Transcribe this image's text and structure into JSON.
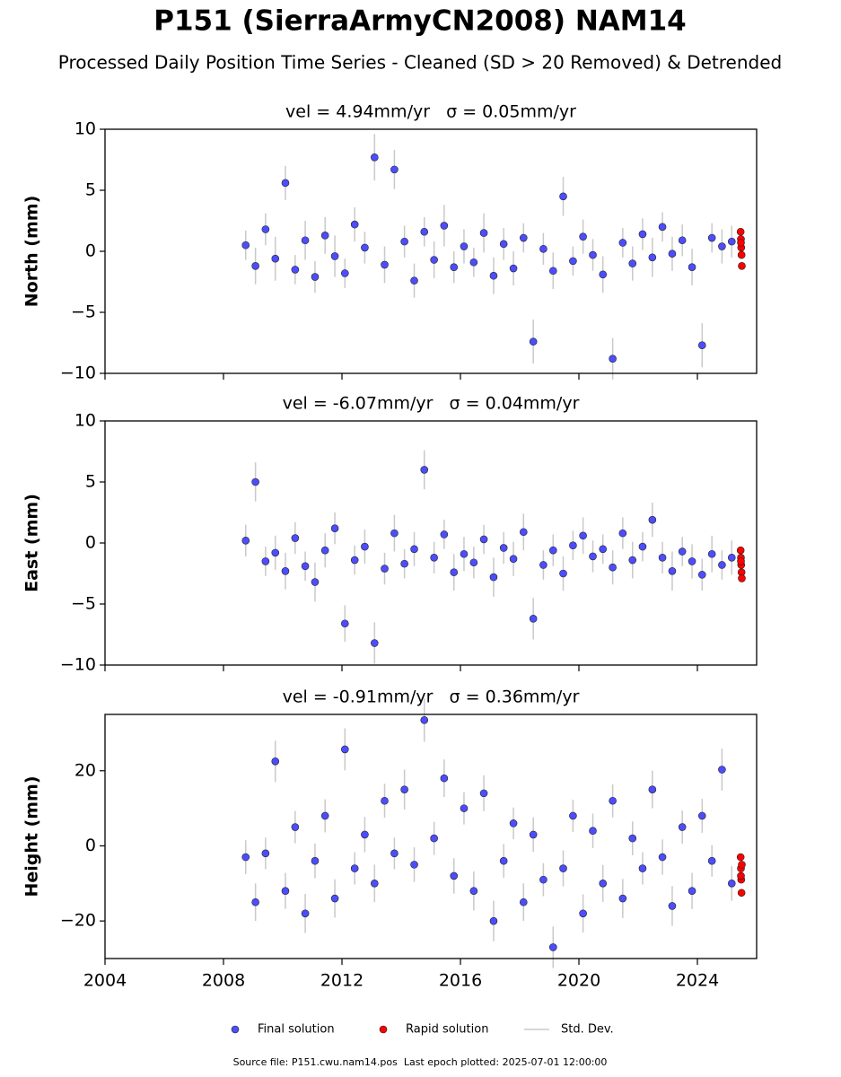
{
  "title": "P151 (SierraArmyCN2008) NAM14",
  "subtitle": "Processed Daily Position Time Series - Cleaned (SD > 20 Removed) & Detrended",
  "legend": {
    "std_dev": "Std. Dev."
  },
  "footer": "Source file: P151.cwu.nam14.pos  Last epoch plotted: 2025-07-01 12:00:00",
  "chart_data": [
    {
      "type": "scatter",
      "title": "vel = 4.94mm/yr   σ = 0.05mm/yr",
      "ylabel": "North (mm)",
      "xlim": [
        2004,
        2026
      ],
      "xticks": [
        2004,
        2008,
        2012,
        2016,
        2020,
        2024
      ],
      "ylim": [
        -10,
        10
      ],
      "yticks": [
        {
          "value": -10,
          "label": "−10"
        },
        {
          "value": -5,
          "label": "−5"
        },
        0,
        5,
        10
      ],
      "series": [
        {
          "name": "Final solution",
          "color": "#4d4dff",
          "x": [
            2008.75,
            2009.08,
            2009.42,
            2009.75,
            2010.09,
            2010.42,
            2010.76,
            2011.09,
            2011.43,
            2011.76,
            2012.1,
            2012.43,
            2012.77,
            2013.1,
            2013.44,
            2013.77,
            2014.11,
            2014.44,
            2014.78,
            2015.11,
            2015.45,
            2015.78,
            2016.12,
            2016.45,
            2016.79,
            2017.12,
            2017.46,
            2017.79,
            2018.13,
            2018.46,
            2018.8,
            2019.13,
            2019.47,
            2019.8,
            2020.14,
            2020.47,
            2020.81,
            2021.14,
            2021.48,
            2021.81,
            2022.15,
            2022.48,
            2022.82,
            2023.15,
            2023.49,
            2023.82,
            2024.16,
            2024.49,
            2024.83,
            2025.16
          ],
          "values": [
            0.5,
            -1.2,
            1.8,
            -0.6,
            5.6,
            -1.5,
            0.9,
            -2.1,
            1.3,
            -0.4,
            -1.8,
            2.2,
            0.3,
            7.7,
            -1.1,
            6.7,
            0.8,
            -2.4,
            1.6,
            -0.7,
            2.1,
            -1.3,
            0.4,
            -0.9,
            1.5,
            -2.0,
            0.6,
            -1.4,
            1.1,
            -7.4,
            0.2,
            -1.6,
            4.5,
            -0.8,
            1.2,
            -0.3,
            -1.9,
            -8.8,
            0.7,
            -1.0,
            1.4,
            -0.5,
            2.0,
            -0.2,
            0.9,
            -1.3,
            -7.7,
            1.1,
            0.4,
            0.8
          ],
          "errors": [
            1.2,
            1.5,
            1.3,
            1.8,
            1.4,
            1.2,
            1.6,
            1.3,
            1.5,
            1.7,
            1.2,
            1.4,
            1.3,
            1.9,
            1.5,
            1.6,
            1.3,
            1.4,
            1.2,
            1.5,
            1.7,
            1.3,
            1.4,
            1.2,
            1.6,
            1.5,
            1.3,
            1.4,
            1.2,
            1.8,
            1.3,
            1.5,
            1.6,
            1.2,
            1.4,
            1.3,
            1.5,
            1.7,
            1.2,
            1.4,
            1.3,
            1.6,
            1.2,
            1.4,
            1.3,
            1.5,
            1.8,
            1.2,
            1.4,
            1.3
          ]
        },
        {
          "name": "Rapid solution",
          "color": "#ff0000",
          "x": [
            2025.46,
            2025.47,
            2025.48,
            2025.49,
            2025.5,
            2025.47
          ],
          "values": [
            1.6,
            1.0,
            0.3,
            -0.3,
            -1.2,
            0.7
          ]
        }
      ]
    },
    {
      "type": "scatter",
      "title": "vel = -6.07mm/yr   σ = 0.04mm/yr",
      "ylabel": "East (mm)",
      "xlim": [
        2004,
        2026
      ],
      "xticks": [
        2004,
        2008,
        2012,
        2016,
        2020,
        2024
      ],
      "ylim": [
        -10,
        10
      ],
      "yticks": [
        {
          "value": -10,
          "label": "−10"
        },
        {
          "value": -5,
          "label": "−5"
        },
        0,
        5,
        10
      ],
      "series": [
        {
          "name": "Final solution",
          "color": "#4d4dff",
          "x": [
            2008.75,
            2009.08,
            2009.42,
            2009.75,
            2010.09,
            2010.42,
            2010.76,
            2011.09,
            2011.43,
            2011.76,
            2012.1,
            2012.43,
            2012.77,
            2013.1,
            2013.44,
            2013.77,
            2014.11,
            2014.44,
            2014.78,
            2015.11,
            2015.45,
            2015.78,
            2016.12,
            2016.45,
            2016.79,
            2017.12,
            2017.46,
            2017.79,
            2018.13,
            2018.46,
            2018.8,
            2019.13,
            2019.47,
            2019.8,
            2020.14,
            2020.47,
            2020.81,
            2021.14,
            2021.48,
            2021.81,
            2022.15,
            2022.48,
            2022.82,
            2023.15,
            2023.49,
            2023.82,
            2024.16,
            2024.49,
            2024.83,
            2025.16
          ],
          "values": [
            0.2,
            5.0,
            -1.5,
            -0.8,
            -2.3,
            0.4,
            -1.9,
            -3.2,
            -0.6,
            1.2,
            -6.6,
            -1.4,
            -0.3,
            -8.2,
            -2.1,
            0.8,
            -1.7,
            -0.5,
            6.0,
            -1.2,
            0.7,
            -2.4,
            -0.9,
            -1.6,
            0.3,
            -2.8,
            -0.4,
            -1.3,
            0.9,
            -6.2,
            -1.8,
            -0.6,
            -2.5,
            -0.2,
            0.6,
            -1.1,
            -0.5,
            -2.0,
            0.8,
            -1.4,
            -0.3,
            1.9,
            -1.2,
            -2.3,
            -0.7,
            -1.5,
            -2.6,
            -0.9,
            -1.8,
            -1.2
          ],
          "errors": [
            1.3,
            1.6,
            1.2,
            1.4,
            1.5,
            1.3,
            1.2,
            1.6,
            1.4,
            1.3,
            1.5,
            1.2,
            1.4,
            1.7,
            1.3,
            1.5,
            1.2,
            1.4,
            1.6,
            1.3,
            1.2,
            1.5,
            1.4,
            1.3,
            1.2,
            1.6,
            1.3,
            1.4,
            1.5,
            1.7,
            1.2,
            1.3,
            1.4,
            1.2,
            1.5,
            1.3,
            1.2,
            1.4,
            1.3,
            1.5,
            1.2,
            1.4,
            1.3,
            1.6,
            1.2,
            1.4,
            1.3,
            1.5,
            1.2,
            1.4
          ]
        },
        {
          "name": "Rapid solution",
          "color": "#ff0000",
          "x": [
            2025.46,
            2025.47,
            2025.48,
            2025.49,
            2025.5,
            2025.47
          ],
          "values": [
            -0.6,
            -1.2,
            -1.8,
            -2.4,
            -2.9,
            -1.5
          ]
        }
      ]
    },
    {
      "type": "scatter",
      "title": "vel = -0.91mm/yr   σ = 0.36mm/yr",
      "ylabel": "Height (mm)",
      "xlim": [
        2004,
        2026
      ],
      "xticks": [
        2004,
        2008,
        2012,
        2016,
        2020,
        2024
      ],
      "ylim": [
        -30,
        35
      ],
      "yticks": [
        {
          "value": -20,
          "label": "−20"
        },
        0,
        20
      ],
      "series": [
        {
          "name": "Final solution",
          "color": "#4d4dff",
          "x": [
            2008.75,
            2009.08,
            2009.42,
            2009.75,
            2010.09,
            2010.42,
            2010.76,
            2011.09,
            2011.43,
            2011.76,
            2012.1,
            2012.43,
            2012.77,
            2013.1,
            2013.44,
            2013.77,
            2014.11,
            2014.44,
            2014.78,
            2015.11,
            2015.45,
            2015.78,
            2016.12,
            2016.45,
            2016.79,
            2017.12,
            2017.46,
            2017.79,
            2018.13,
            2018.46,
            2018.8,
            2019.13,
            2019.47,
            2019.8,
            2020.14,
            2020.47,
            2020.81,
            2021.14,
            2021.48,
            2021.81,
            2022.15,
            2022.48,
            2022.82,
            2023.15,
            2023.49,
            2023.82,
            2024.16,
            2024.49,
            2024.83,
            2025.16
          ],
          "values": [
            -3,
            -15,
            -2,
            22.5,
            -12,
            5,
            -18,
            -4,
            8,
            -14,
            25.7,
            -6,
            3,
            -10,
            12,
            -2,
            15,
            -5,
            33.5,
            2,
            18,
            -8,
            10,
            -12,
            14,
            -20,
            -4,
            6,
            -15,
            3,
            -9,
            -27,
            -6,
            8,
            -18,
            4,
            -10,
            12,
            -14,
            2,
            -6,
            15,
            -3,
            -16,
            5,
            -12,
            8,
            -4,
            20.3,
            -10
          ],
          "errors": [
            4.5,
            5.0,
            4.2,
            5.5,
            4.8,
            4.3,
            5.2,
            4.6,
            4.4,
            5.1,
            5.6,
            4.3,
            4.7,
            5.0,
            4.5,
            4.2,
            5.3,
            4.6,
            5.8,
            4.4,
            5.0,
            4.7,
            4.3,
            5.2,
            4.8,
            5.4,
            4.5,
            4.2,
            5.0,
            4.6,
            4.4,
            5.5,
            4.8,
            4.3,
            5.1,
            4.6,
            4.9,
            4.4,
            5.2,
            4.5,
            4.3,
            5.0,
            4.7,
            5.3,
            4.4,
            4.8,
            4.5,
            4.2,
            5.6,
            4.6
          ]
        },
        {
          "name": "Rapid solution",
          "color": "#ff0000",
          "x": [
            2025.46,
            2025.47,
            2025.48,
            2025.49,
            2025.5,
            2025.47
          ],
          "values": [
            -3,
            -6,
            -9,
            -12.5,
            -5,
            -8
          ]
        }
      ]
    }
  ]
}
